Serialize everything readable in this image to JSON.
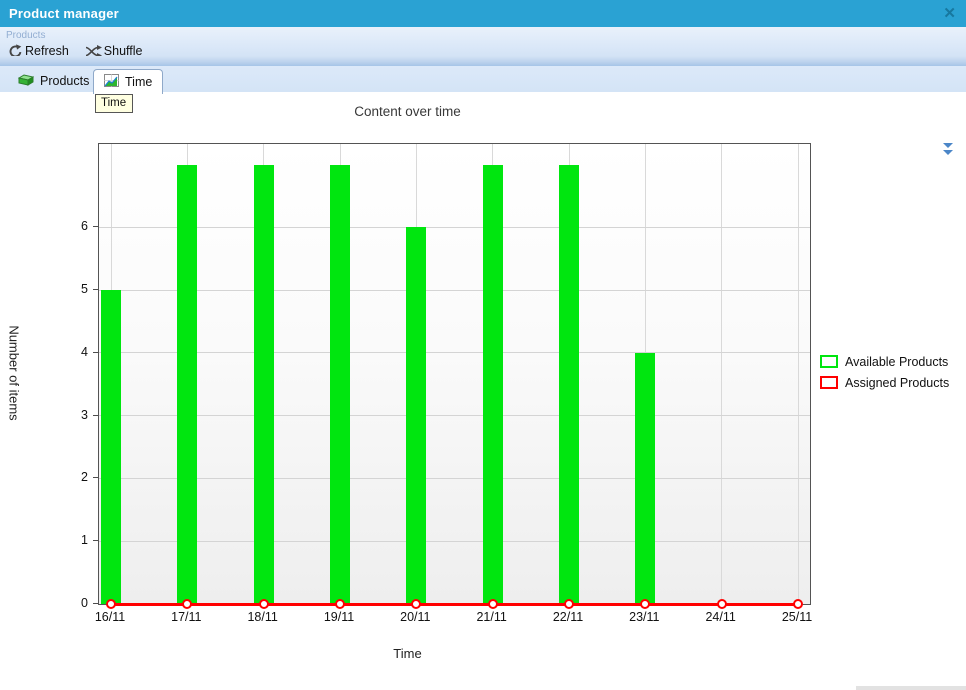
{
  "window": {
    "title": "Product manager",
    "close_glyph": "✕"
  },
  "toolbar": {
    "group_label": "Products",
    "refresh_label": "Refresh",
    "shuffle_label": "Shuffle"
  },
  "tabs": [
    {
      "label": "Products",
      "selected": false
    },
    {
      "label": "Time",
      "selected": true
    }
  ],
  "tooltip": {
    "text": "Time"
  },
  "icons": {
    "close": "close-icon",
    "refresh": "refresh-icon",
    "shuffle": "shuffle-icon",
    "products_tab": "green-box-icon",
    "time_tab": "mini-chart-icon",
    "tabstrip_right": "double-chevron-down-icon"
  },
  "colors": {
    "titlebar_blue": "#2aa2d3",
    "bar_green": "#00e60f",
    "line_red": "#ff0000",
    "tooltip_bg": "#ffffe1",
    "strip_blue": "#d4e4f6"
  },
  "chart_data": {
    "type": "bar",
    "title": "Content over time",
    "xlabel": "Time",
    "ylabel": "Number of items",
    "categories": [
      "16/11",
      "17/11",
      "18/11",
      "19/11",
      "20/11",
      "21/11",
      "22/11",
      "23/11",
      "24/11",
      "25/11"
    ],
    "series": [
      {
        "name": "Available Products",
        "type": "bar",
        "color": "#00e60f",
        "values": [
          5,
          7,
          7,
          7,
          6,
          7,
          7,
          4,
          0,
          0
        ]
      },
      {
        "name": "Assigned Products",
        "type": "line",
        "color": "#ff0000",
        "marker": "open-circle",
        "values": [
          0,
          0,
          0,
          0,
          0,
          0,
          0,
          0,
          0,
          0
        ]
      }
    ],
    "ylim": [
      0,
      7.33
    ],
    "yticks": [
      0,
      1,
      2,
      3,
      4,
      5,
      6
    ],
    "grid": true,
    "legend_position": "right"
  }
}
